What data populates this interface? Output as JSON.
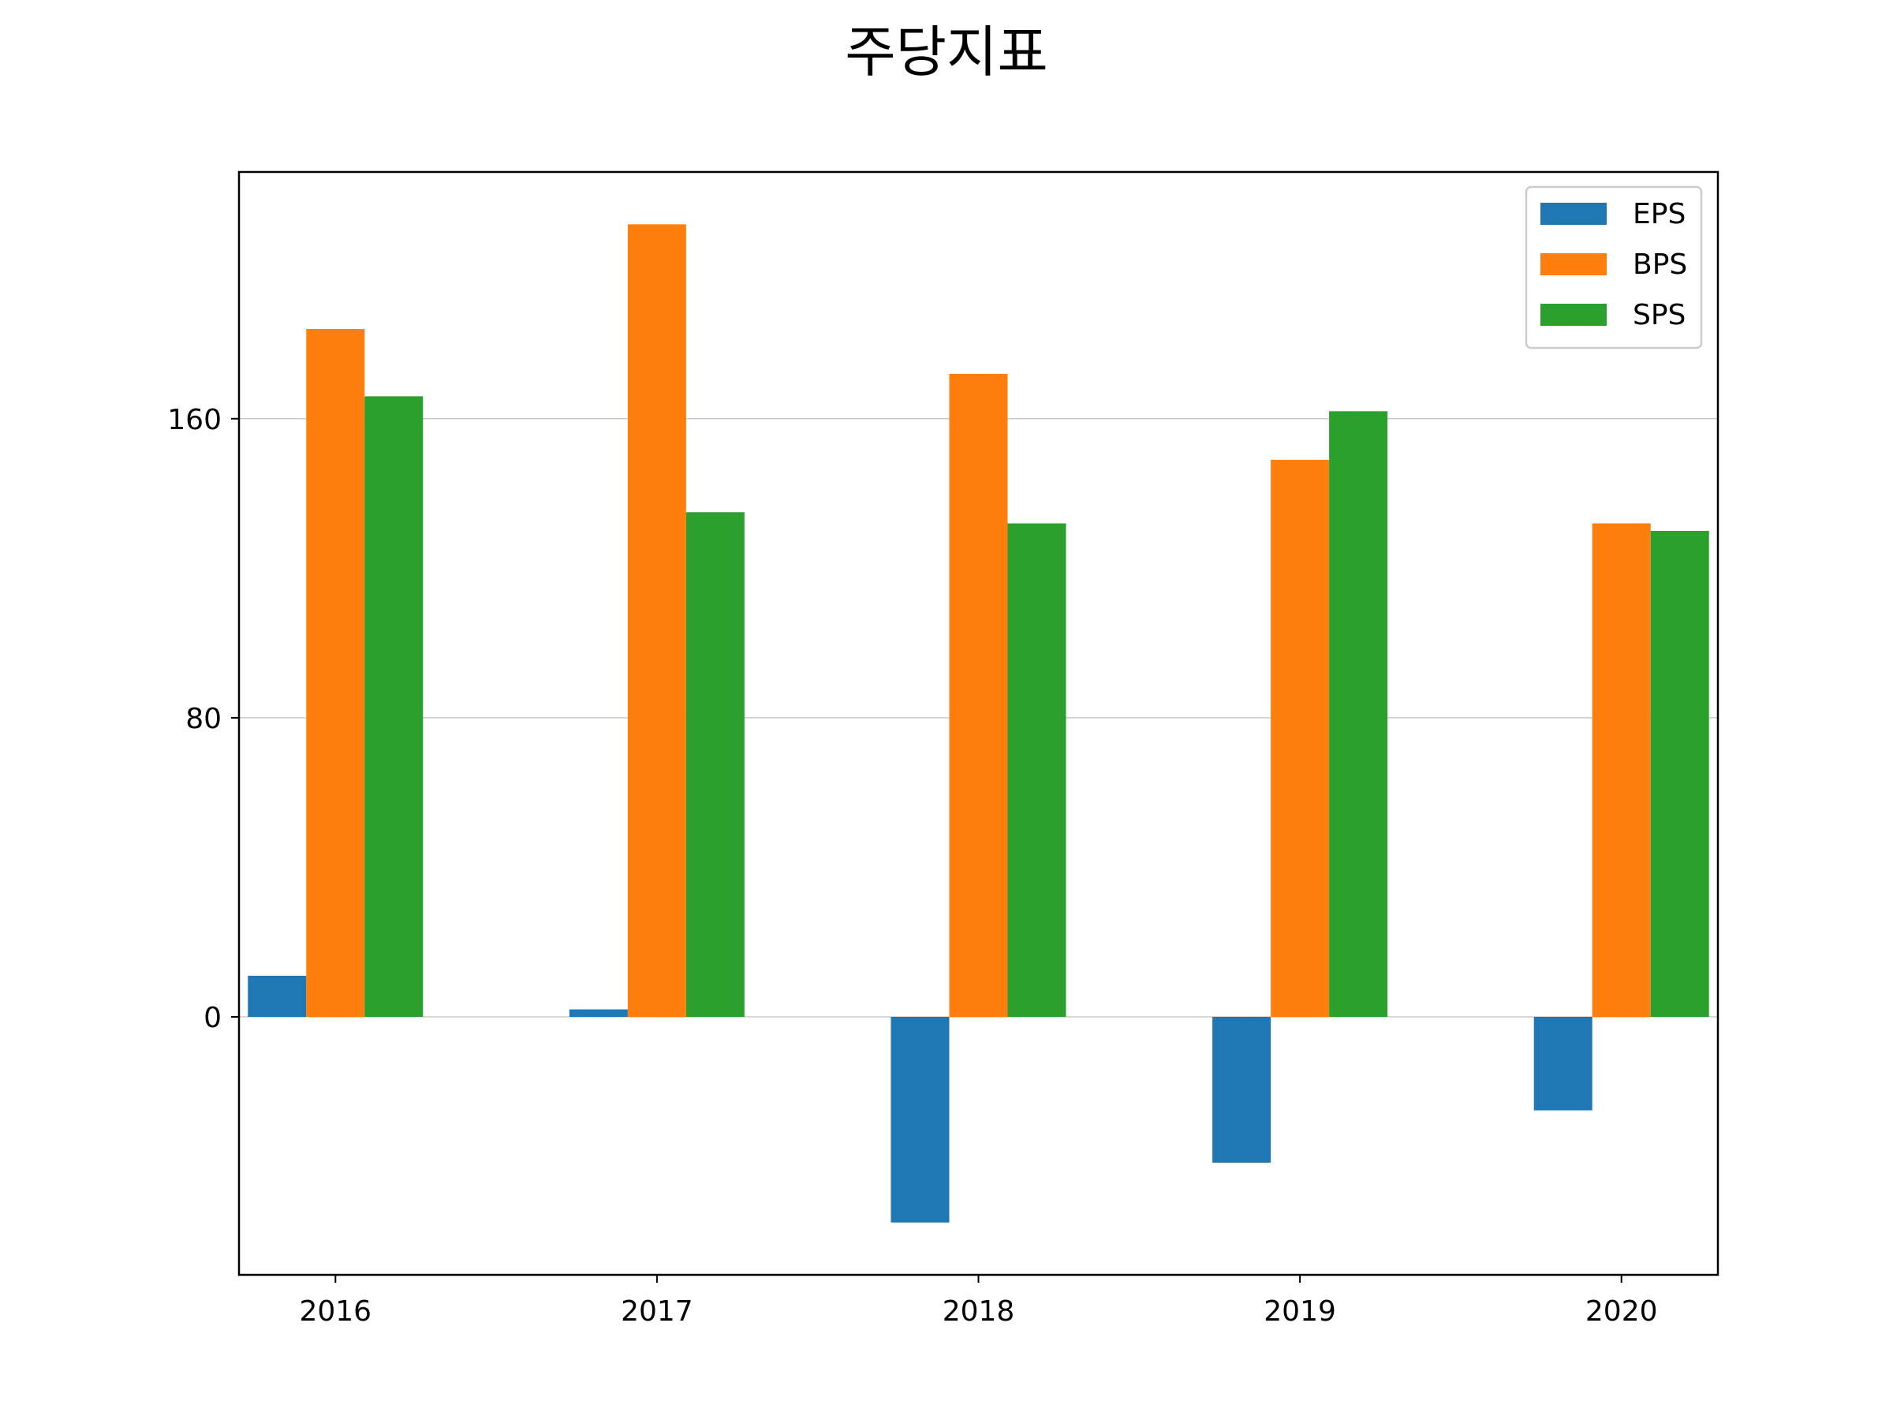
{
  "chart_data": {
    "type": "bar",
    "title": "주당지표",
    "xlabel": "",
    "ylabel": "",
    "categories": [
      "2016",
      "2017",
      "2018",
      "2019",
      "2020"
    ],
    "series": [
      {
        "name": "EPS",
        "color": "#1f77b4",
        "values": [
          11,
          2,
          -55,
          -39,
          -25
        ]
      },
      {
        "name": "BPS",
        "color": "#ff7f0e",
        "values": [
          184,
          212,
          172,
          149,
          132
        ]
      },
      {
        "name": "SPS",
        "color": "#2ca02c",
        "values": [
          166,
          135,
          132,
          162,
          130
        ]
      }
    ],
    "yticks": [
      0,
      80,
      160
    ],
    "ylim": [
      -69,
      226
    ],
    "grid": "y",
    "legend_position": "top-right"
  }
}
